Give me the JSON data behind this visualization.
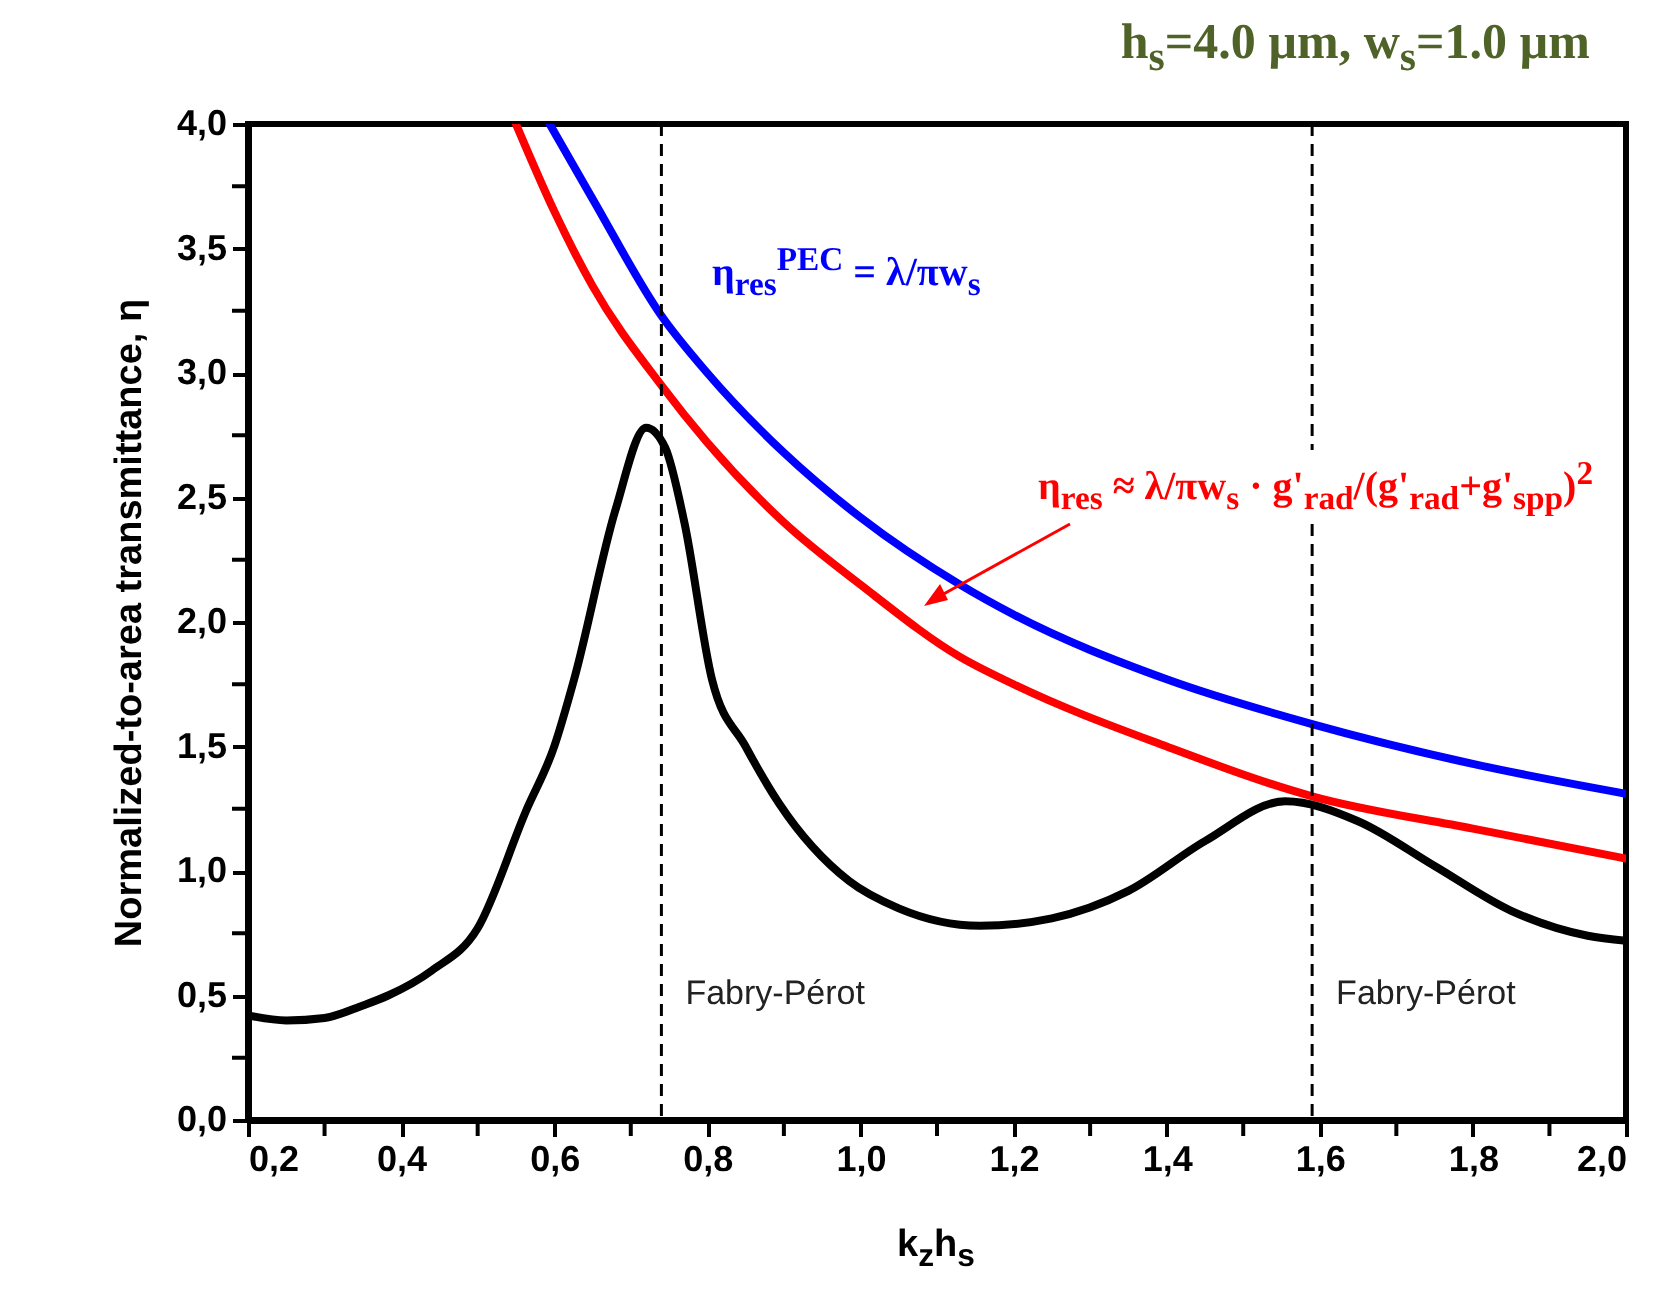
{
  "chart_data": {
    "type": "line",
    "title": "h$_{s}$=4.0 µm, w$_{s}$=1.0 µm",
    "xlabel": "k$_{z}$h$_{s}$",
    "ylabel": "Normalized-to-area transmittance, η",
    "xlim": [
      0.2,
      2.0
    ],
    "ylim": [
      0,
      4
    ],
    "xticks": [
      {
        "value": 0.2,
        "label": "0,2"
      },
      {
        "value": 0.3,
        "label": null
      },
      {
        "value": 0.4,
        "label": "0,4"
      },
      {
        "value": 0.5,
        "label": null
      },
      {
        "value": 0.6,
        "label": "0,6"
      },
      {
        "value": 0.7,
        "label": null
      },
      {
        "value": 0.8,
        "label": "0,8"
      },
      {
        "value": 0.9,
        "label": null
      },
      {
        "value": 1.0,
        "label": "1,0"
      },
      {
        "value": 1.1,
        "label": null
      },
      {
        "value": 1.2,
        "label": "1,2"
      },
      {
        "value": 1.3,
        "label": null
      },
      {
        "value": 1.4,
        "label": "1,4"
      },
      {
        "value": 1.5,
        "label": null
      },
      {
        "value": 1.6,
        "label": "1,6"
      },
      {
        "value": 1.7,
        "label": null
      },
      {
        "value": 1.8,
        "label": "1,8"
      },
      {
        "value": 1.9,
        "label": null
      },
      {
        "value": 2.0,
        "label": "2,0"
      }
    ],
    "yticks": [
      {
        "value": 0,
        "label": "0,0"
      },
      {
        "value": 0.25,
        "label": null
      },
      {
        "value": 0.5,
        "label": "0,5"
      },
      {
        "value": 0.75,
        "label": null
      },
      {
        "value": 1.0,
        "label": "1,0"
      },
      {
        "value": 1.25,
        "label": null
      },
      {
        "value": 1.5,
        "label": "1,5"
      },
      {
        "value": 1.75,
        "label": null
      },
      {
        "value": 2.0,
        "label": "2,0"
      },
      {
        "value": 2.25,
        "label": null
      },
      {
        "value": 2.5,
        "label": "2,5"
      },
      {
        "value": 2.75,
        "label": null
      },
      {
        "value": 3.0,
        "label": "3,0"
      },
      {
        "value": 3.25,
        "label": null
      },
      {
        "value": 3.5,
        "label": "3,5"
      },
      {
        "value": 3.75,
        "label": null
      },
      {
        "value": 4.0,
        "label": "4,0"
      }
    ],
    "line_style": "solid",
    "marker": "none",
    "series": [
      {
        "name": "η$_{res}$$^{PEC}$ = λ/πw$_{s}$",
        "color": "#0000ff",
        "x": [
          0.594,
          0.65,
          0.74,
          0.8,
          0.9,
          1.0,
          1.13,
          1.2,
          1.4,
          1.59,
          1.8,
          2.0
        ],
        "values": [
          4.0,
          3.7,
          3.23,
          3.0,
          2.68,
          2.42,
          2.15,
          2.03,
          1.77,
          1.59,
          1.43,
          1.31
        ]
      },
      {
        "name": "η$_{res}$ ≈ λ/πw$_{s}$ · g'$_{rad}$/(g'$_{rad}$+g'$_{spp}$)$^{2}$",
        "color": "#ff0000",
        "x": [
          0.55,
          0.6,
          0.65,
          0.74,
          0.8,
          0.9,
          1.0,
          1.13,
          1.2,
          1.4,
          1.59,
          1.8,
          2.0
        ],
        "values": [
          4.0,
          3.65,
          3.35,
          2.95,
          2.72,
          2.4,
          2.15,
          1.86,
          1.75,
          1.5,
          1.3,
          1.17,
          1.05
        ]
      },
      {
        "color": "#000000",
        "x": [
          0.2,
          0.25,
          0.3,
          0.35,
          0.383,
          0.44,
          0.5,
          0.563,
          0.6,
          0.626,
          0.68,
          0.72,
          0.745,
          0.77,
          0.806,
          0.85,
          0.894,
          0.985,
          1.05,
          1.156,
          1.25,
          1.35,
          1.45,
          1.555,
          1.65,
          1.75,
          1.85,
          1.95,
          2.0
        ],
        "values": [
          0.42,
          0.4,
          0.41,
          0.46,
          0.5,
          0.6,
          0.77,
          1.24,
          1.5,
          1.77,
          2.45,
          2.78,
          2.7,
          2.4,
          1.77,
          1.5,
          1.27,
          0.96,
          0.85,
          0.78,
          0.81,
          0.92,
          1.12,
          1.28,
          1.2,
          1.02,
          0.84,
          0.74,
          0.72
        ]
      }
    ],
    "ref_lines": [
      {
        "axis": "x",
        "value": 0.74,
        "label": "Fabry-Pérot",
        "color": "#000000",
        "line_style": "dashed"
      },
      {
        "axis": "x",
        "value": 1.59,
        "label": "Fabry-Pérot",
        "color": "#000000",
        "line_style": "dashed"
      }
    ]
  }
}
